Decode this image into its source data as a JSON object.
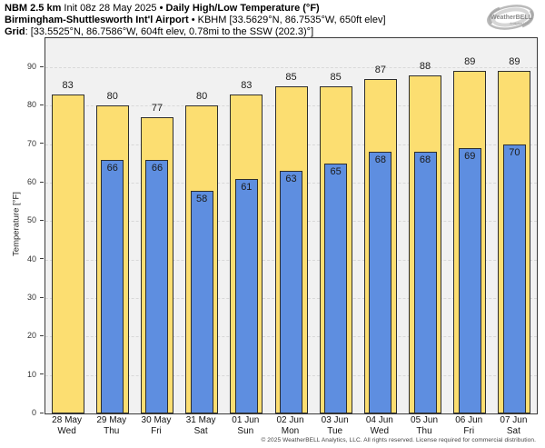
{
  "header": {
    "line1": {
      "model_bold": "NBM 2.5 km",
      "init_regular": " Init 08z 28 May 2025 ",
      "product_bold": "• Daily High/Low Temperature (°F)"
    },
    "line2": {
      "station_bold": "Birmingham-Shuttlesworth Int'l Airport",
      "station_regular": " • KBHM [33.5629°N, 86.7535°W, 650ft elev]"
    },
    "line3": {
      "grid_bold": "Grid",
      "grid_regular": ": [33.5525°N, 86.7586°W, 604ft elev, 0.78mi to the SSW (202.3)°]"
    }
  },
  "logo": {
    "text": "WeatherBELL",
    "subtext": "Analytics LLC"
  },
  "chart_data": {
    "type": "bar",
    "title": "Daily High/Low Temperature (°F)",
    "ylabel": "Temperature [°F]",
    "ylim": [
      0,
      97.6
    ],
    "yticks": [
      0,
      10,
      20,
      30,
      40,
      50,
      60,
      70,
      80,
      90
    ],
    "grid": "horizontal-dashed",
    "legend_position": "none",
    "categories": [
      "28 May",
      "29 May",
      "30 May",
      "31 May",
      "01 Jun",
      "02 Jun",
      "03 Jun",
      "04 Jun",
      "05 Jun",
      "06 Jun",
      "07 Jun"
    ],
    "weekdays": [
      "Wed",
      "Thu",
      "Fri",
      "Sat",
      "Sun",
      "Mon",
      "Tue",
      "Wed",
      "Thu",
      "Fri",
      "Sat"
    ],
    "series": [
      {
        "name": "High",
        "color": "#fcde71",
        "values": [
          83,
          80,
          77,
          80,
          83,
          85,
          85,
          87,
          88,
          89,
          89
        ]
      },
      {
        "name": "Low",
        "color": "#5e8ee0",
        "values": [
          null,
          66,
          66,
          58,
          61,
          63,
          65,
          68,
          68,
          69,
          70
        ]
      }
    ]
  },
  "colors": {
    "high_fill": "#fcde71",
    "low_fill": "#5e8ee0",
    "bar_border": "#2e2e2e",
    "plot_background": "#f1f1f1",
    "gridline": "#d8d8d8",
    "spine": "#3a3a3a",
    "logo_gray": "#a3a3a3"
  },
  "footer": {
    "copyright": "© 2025 WeatherBELL Analytics, LLC. All rights reserved. License required for commercial distribution."
  }
}
